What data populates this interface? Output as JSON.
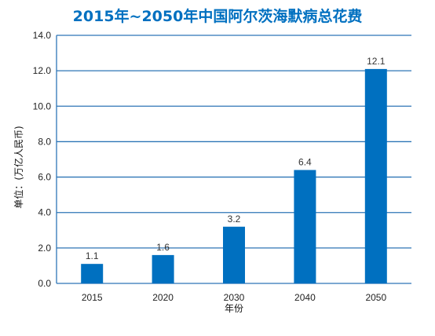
{
  "chart_data": {
    "type": "bar",
    "title": "2015年~2050年中国阿尔茨海默病总花费",
    "xlabel": "年份",
    "ylabel": "单位：(万亿人民币)",
    "categories": [
      "2015",
      "2020",
      "2030",
      "2040",
      "2050"
    ],
    "values": [
      1.1,
      1.6,
      3.2,
      6.4,
      12.1
    ],
    "data_labels": [
      "1.1",
      "1.6",
      "3.2",
      "6.4",
      "12.1"
    ],
    "ylim": [
      0,
      14
    ],
    "yticks": [
      "0.0",
      "2.0",
      "4.0",
      "6.0",
      "8.0",
      "10.0",
      "12.0",
      "14.0"
    ],
    "grid": true,
    "legend": "none",
    "colors": {
      "bar": "#0070c0",
      "title": "#0070c0",
      "grid": "#2e75b6"
    }
  }
}
